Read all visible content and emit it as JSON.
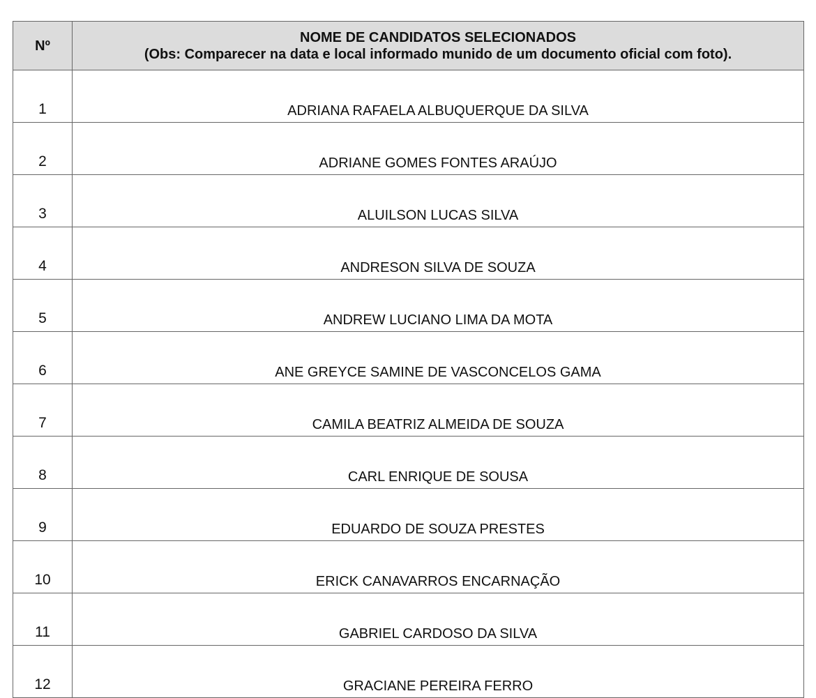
{
  "header": {
    "number_label": "Nº",
    "title": "NOME DE CANDIDATOS SELECIONADOS",
    "note": "(Obs: Comparecer na data e local informado munido de um documento oficial com foto)."
  },
  "rows": [
    {
      "number": "1",
      "name": "ADRIANA RAFAELA ALBUQUERQUE DA SILVA"
    },
    {
      "number": "2",
      "name": "ADRIANE GOMES FONTES ARAÚJO"
    },
    {
      "number": "3",
      "name": "ALUILSON LUCAS SILVA"
    },
    {
      "number": "4",
      "name": "ANDRESON SILVA DE SOUZA"
    },
    {
      "number": "5",
      "name": "ANDREW LUCIANO LIMA DA MOTA"
    },
    {
      "number": "6",
      "name": "ANE GREYCE SAMINE DE VASCONCELOS GAMA"
    },
    {
      "number": "7",
      "name": "CAMILA BEATRIZ ALMEIDA DE SOUZA"
    },
    {
      "number": "8",
      "name": "CARL ENRIQUE DE SOUSA"
    },
    {
      "number": "9",
      "name": "EDUARDO DE SOUZA PRESTES"
    },
    {
      "number": "10",
      "name": "ERICK CANAVARROS ENCARNAÇÃO"
    },
    {
      "number": "11",
      "name": "GABRIEL CARDOSO DA SILVA"
    },
    {
      "number": "12",
      "name": "GRACIANE PEREIRA FERRO"
    }
  ]
}
